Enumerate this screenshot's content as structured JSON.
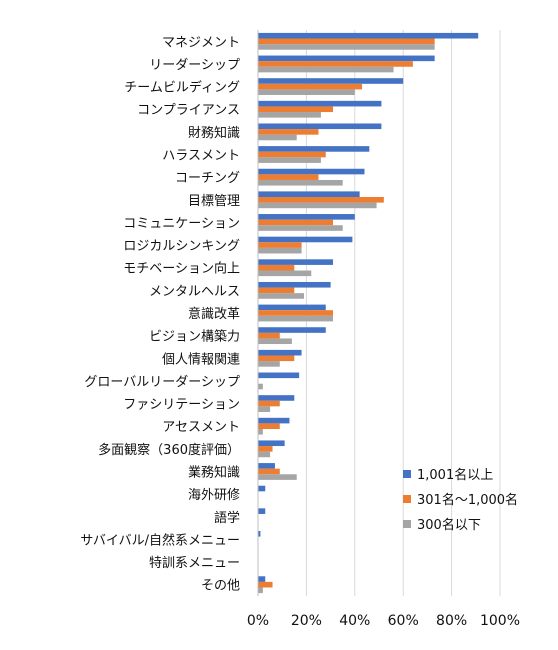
{
  "chart_data": {
    "type": "bar",
    "orientation": "horizontal",
    "categories": [
      "マネジメント",
      "リーダーシップ",
      "チームビルディング",
      "コンプライアンス",
      "財務知識",
      "ハラスメント",
      "コーチング",
      "目標管理",
      "コミュニケーション",
      "ロジカルシンキング",
      "モチベーション向上",
      "メンタルヘルス",
      "意識改革",
      "ビジョン構築力",
      "個人情報関連",
      "グローバルリーダーシップ",
      "ファシリテーション",
      "アセスメント",
      "多面観察（360度評価）",
      "業務知識",
      "海外研修",
      "語学",
      "サバイバル/自然系メニュー",
      "特訓系メニュー",
      "その他"
    ],
    "series": [
      {
        "name": "1,001名以上",
        "color": "#4472C4",
        "values": [
          91,
          73,
          60,
          51,
          51,
          46,
          44,
          42,
          40,
          39,
          31,
          30,
          28,
          28,
          18,
          17,
          15,
          13,
          11,
          7,
          3,
          3,
          1,
          0,
          3
        ]
      },
      {
        "name": "301名～1,000名",
        "color": "#ED7D31",
        "values": [
          73,
          64,
          43,
          31,
          25,
          28,
          25,
          52,
          31,
          18,
          15,
          15,
          31,
          9,
          15,
          0,
          9,
          9,
          6,
          9,
          0,
          0,
          0,
          0,
          6
        ]
      },
      {
        "name": "300名以下",
        "color": "#A5A5A5",
        "values": [
          73,
          56,
          40,
          26,
          16,
          26,
          35,
          49,
          35,
          18,
          22,
          19,
          31,
          14,
          9,
          2,
          5,
          2,
          5,
          16,
          0,
          0,
          0,
          0,
          2
        ]
      }
    ],
    "xlim": [
      0,
      100
    ],
    "xticks": [
      "0%",
      "20%",
      "40%",
      "60%",
      "80%",
      "100%"
    ],
    "grid": true,
    "legend_position": "lower-right"
  }
}
